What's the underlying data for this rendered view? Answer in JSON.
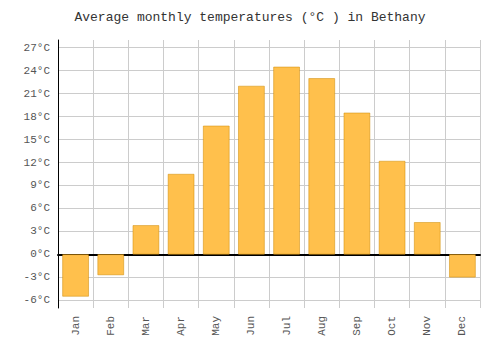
{
  "chart_data": {
    "type": "bar",
    "title": "Average monthly temperatures (°C ) in Bethany",
    "categories": [
      "Jan",
      "Feb",
      "Mar",
      "Apr",
      "May",
      "Jun",
      "Jul",
      "Aug",
      "Sep",
      "Oct",
      "Nov",
      "Dec"
    ],
    "values": [
      -5.5,
      -2.7,
      3.8,
      10.5,
      16.8,
      22.0,
      24.5,
      23.0,
      18.5,
      12.2,
      4.2,
      -3.0
    ],
    "color": "#FFC04C",
    "ylim": [
      -7,
      28
    ],
    "yticks": [
      {
        "value": -6,
        "label": "-6°C"
      },
      {
        "value": -3,
        "label": "-3°C"
      },
      {
        "value": 0,
        "label": "0°C"
      },
      {
        "value": 3,
        "label": "3°C"
      },
      {
        "value": 6,
        "label": "6°C"
      },
      {
        "value": 9,
        "label": "9°C"
      },
      {
        "value": 12,
        "label": "12°C"
      },
      {
        "value": 15,
        "label": "15°C"
      },
      {
        "value": 18,
        "label": "18°C"
      },
      {
        "value": 21,
        "label": "21°C"
      },
      {
        "value": 24,
        "label": "24°C"
      },
      {
        "value": 27,
        "label": "27°C"
      }
    ],
    "grid": true
  }
}
